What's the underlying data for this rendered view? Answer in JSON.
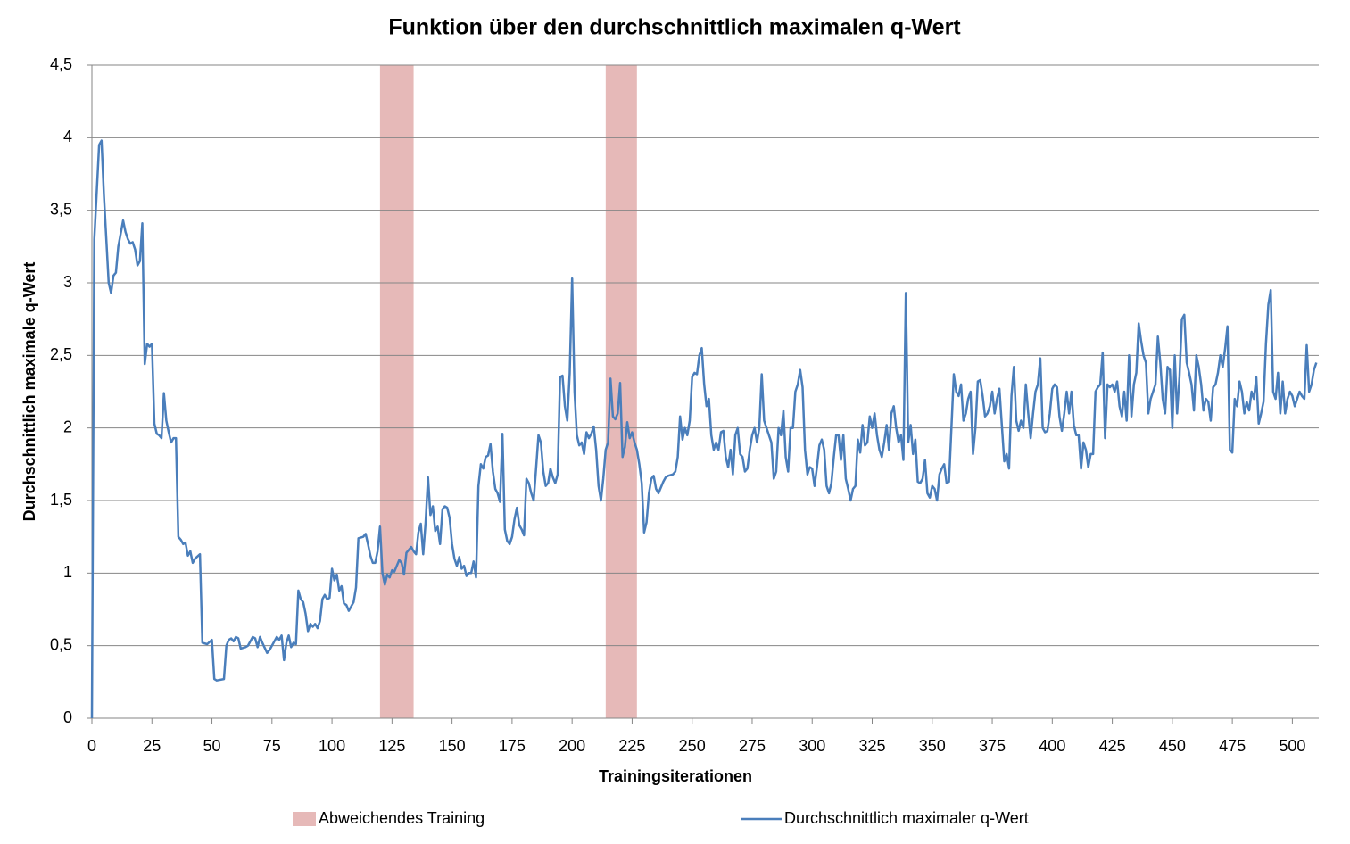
{
  "chart_data": {
    "type": "line",
    "title": "Funktion über den durchschnittlich maximalen q-Wert",
    "x_label": "Trainingsiterationen",
    "y_label": "Durchschnittlich maximale q-Wert",
    "xlim": [
      0,
      511
    ],
    "xticks": [
      0,
      25,
      50,
      75,
      100,
      125,
      150,
      175,
      200,
      225,
      250,
      275,
      300,
      325,
      350,
      375,
      400,
      425,
      450,
      475,
      500
    ],
    "ylim": [
      0,
      4.5
    ],
    "yticks": [
      0,
      {
        "value": 0.5,
        "label": "0,5"
      },
      1,
      {
        "value": 1.5,
        "label": "1,5"
      },
      2,
      {
        "value": 2.5,
        "label": "2,5"
      },
      3,
      {
        "value": 3.5,
        "label": "3,5"
      },
      4,
      {
        "value": 4.5,
        "label": "4,5"
      }
    ],
    "grid": true,
    "legend": "bottom",
    "bands": {
      "name": "Abweichendes Training",
      "color": "#e6b9b8",
      "ranges": [
        [
          120,
          134
        ],
        [
          214,
          227
        ]
      ]
    },
    "x": [
      0,
      1,
      3,
      4,
      5,
      7,
      8,
      9,
      10,
      11,
      13,
      14,
      15,
      16,
      17,
      18,
      19,
      20,
      21,
      22,
      23,
      24,
      25,
      26,
      27,
      28,
      29,
      30,
      31,
      32,
      33,
      34,
      35,
      36,
      37,
      38,
      39,
      40,
      41,
      42,
      43,
      45,
      46,
      48,
      50,
      51,
      52,
      55,
      56,
      57,
      58,
      59,
      60,
      61,
      62,
      64,
      65,
      67,
      68,
      69,
      70,
      71,
      73,
      74,
      76,
      77,
      78,
      79,
      80,
      81,
      82,
      83,
      84,
      85,
      86,
      87,
      88,
      89,
      90,
      91,
      92,
      93,
      94,
      95,
      96,
      97,
      98,
      99,
      100,
      101,
      102,
      103,
      104,
      105,
      106,
      107,
      108,
      109,
      110,
      111,
      113,
      114,
      115,
      116,
      117,
      118,
      119,
      120,
      121,
      122,
      123,
      124,
      125,
      126,
      127,
      128,
      129,
      130,
      131,
      133,
      134,
      135,
      136,
      137,
      138,
      139,
      140,
      141,
      142,
      143,
      144,
      145,
      146,
      147,
      148,
      149,
      150,
      151,
      152,
      153,
      154,
      155,
      156,
      157,
      158,
      159,
      160,
      161,
      162,
      163,
      164,
      165,
      166,
      167,
      168,
      169,
      170,
      171,
      172,
      173,
      174,
      175,
      176,
      177,
      178,
      179,
      180,
      181,
      182,
      183,
      184,
      185,
      186,
      187,
      188,
      189,
      190,
      191,
      192,
      193,
      194,
      195,
      196,
      197,
      198,
      199,
      200,
      201,
      202,
      203,
      204,
      205,
      206,
      207,
      208,
      209,
      210,
      211,
      212,
      213,
      214,
      215,
      216,
      217,
      218,
      219,
      220,
      221,
      222,
      223,
      224,
      225,
      226,
      227,
      228,
      229,
      230,
      231,
      232,
      233,
      234,
      235,
      236,
      238,
      239,
      240,
      242,
      243,
      244,
      245,
      246,
      247,
      248,
      249,
      250,
      251,
      252,
      253,
      254,
      255,
      256,
      257,
      258,
      259,
      260,
      261,
      262,
      263,
      264,
      265,
      266,
      267,
      268,
      269,
      270,
      271,
      272,
      273,
      274,
      275,
      276,
      277,
      278,
      279,
      280,
      281,
      282,
      283,
      284,
      285,
      286,
      287,
      288,
      289,
      290,
      291,
      292,
      293,
      294,
      295,
      296,
      297,
      298,
      299,
      300,
      301,
      302,
      303,
      304,
      305,
      306,
      307,
      308,
      309,
      310,
      311,
      312,
      313,
      314,
      315,
      316,
      317,
      318,
      319,
      320,
      321,
      322,
      323,
      324,
      325,
      326,
      327,
      328,
      329,
      330,
      331,
      332,
      333,
      334,
      335,
      336,
      337,
      338,
      339,
      340,
      341,
      342,
      343,
      344,
      345,
      346,
      347,
      348,
      349,
      350,
      351,
      352,
      353,
      354,
      355,
      356,
      357,
      358,
      359,
      360,
      361,
      362,
      363,
      364,
      365,
      366,
      367,
      368,
      369,
      370,
      371,
      372,
      373,
      374,
      375,
      376,
      377,
      378,
      379,
      380,
      381,
      382,
      383,
      384,
      385,
      386,
      387,
      388,
      389,
      390,
      391,
      392,
      393,
      394,
      395,
      396,
      397,
      398,
      399,
      400,
      401,
      402,
      403,
      404,
      405,
      406,
      407,
      408,
      409,
      410,
      411,
      412,
      413,
      414,
      415,
      416,
      417,
      418,
      419,
      420,
      421,
      422,
      423,
      424,
      425,
      426,
      427,
      428,
      429,
      430,
      431,
      432,
      433,
      434,
      435,
      436,
      437,
      438,
      439,
      440,
      441,
      442,
      443,
      444,
      445,
      446,
      447,
      448,
      449,
      450,
      451,
      452,
      453,
      454,
      455,
      456,
      457,
      458,
      459,
      460,
      461,
      462,
      463,
      464,
      465,
      466,
      467,
      468,
      469,
      470,
      471,
      472,
      473,
      474,
      475,
      476,
      477,
      478,
      479,
      480,
      481,
      482,
      483,
      484,
      485,
      486,
      487,
      488,
      489,
      490,
      491,
      492,
      493,
      494,
      495,
      496,
      497,
      498,
      499,
      500,
      501,
      502,
      503,
      504,
      505,
      506,
      507,
      508,
      509,
      510
    ],
    "series": [
      {
        "name": "Durchschnittlich maximaler q-Wert",
        "color": "#4a7ebb",
        "values": [
          0,
          3.3,
          3.95,
          3.98,
          3.6,
          3.0,
          2.93,
          3.05,
          3.07,
          3.25,
          3.43,
          3.35,
          3.3,
          3.27,
          3.28,
          3.23,
          3.12,
          3.15,
          3.41,
          2.44,
          2.58,
          2.56,
          2.58,
          2.03,
          1.96,
          1.95,
          1.93,
          2.24,
          2.05,
          1.97,
          1.9,
          1.93,
          1.93,
          1.25,
          1.23,
          1.2,
          1.21,
          1.12,
          1.15,
          1.07,
          1.1,
          1.13,
          0.52,
          0.51,
          0.54,
          0.27,
          0.26,
          0.27,
          0.5,
          0.54,
          0.55,
          0.53,
          0.56,
          0.55,
          0.48,
          0.49,
          0.5,
          0.56,
          0.55,
          0.49,
          0.56,
          0.52,
          0.45,
          0.47,
          0.53,
          0.56,
          0.54,
          0.57,
          0.4,
          0.52,
          0.57,
          0.49,
          0.52,
          0.51,
          0.88,
          0.82,
          0.8,
          0.72,
          0.6,
          0.65,
          0.63,
          0.65,
          0.62,
          0.67,
          0.82,
          0.85,
          0.82,
          0.83,
          1.03,
          0.95,
          0.99,
          0.88,
          0.91,
          0.79,
          0.78,
          0.74,
          0.77,
          0.8,
          0.9,
          1.24,
          1.25,
          1.27,
          1.2,
          1.12,
          1.07,
          1.07,
          1.15,
          1.32,
          1.0,
          0.92,
          0.99,
          0.97,
          1.02,
          1.01,
          1.05,
          1.09,
          1.07,
          0.99,
          1.14,
          1.18,
          1.15,
          1.13,
          1.28,
          1.34,
          1.13,
          1.35,
          1.66,
          1.4,
          1.46,
          1.29,
          1.32,
          1.2,
          1.44,
          1.46,
          1.45,
          1.38,
          1.2,
          1.1,
          1.05,
          1.11,
          1.03,
          1.05,
          0.98,
          1.0,
          1.0,
          1.08,
          0.97,
          1.6,
          1.75,
          1.72,
          1.8,
          1.81,
          1.89,
          1.7,
          1.58,
          1.55,
          1.49,
          1.96,
          1.3,
          1.22,
          1.2,
          1.25,
          1.37,
          1.45,
          1.33,
          1.3,
          1.26,
          1.65,
          1.62,
          1.55,
          1.5,
          1.72,
          1.95,
          1.9,
          1.7,
          1.6,
          1.62,
          1.72,
          1.66,
          1.62,
          1.68,
          2.35,
          2.36,
          2.15,
          2.05,
          2.38,
          3.03,
          2.25,
          1.95,
          1.88,
          1.9,
          1.82,
          1.97,
          1.93,
          1.96,
          2.01,
          1.85,
          1.6,
          1.5,
          1.65,
          1.85,
          1.9,
          2.34,
          2.08,
          2.06,
          2.1,
          2.31,
          1.8,
          1.87,
          2.04,
          1.93,
          1.97,
          1.9,
          1.85,
          1.75,
          1.62,
          1.28,
          1.35,
          1.55,
          1.65,
          1.67,
          1.58,
          1.55,
          1.63,
          1.66,
          1.67,
          1.68,
          1.7,
          1.8,
          2.08,
          1.92,
          2.0,
          1.95,
          2.05,
          2.35,
          2.38,
          2.37,
          2.5,
          2.55,
          2.3,
          2.15,
          2.2,
          1.95,
          1.85,
          1.9,
          1.85,
          1.97,
          1.98,
          1.8,
          1.73,
          1.85,
          1.68,
          1.95,
          2.0,
          1.82,
          1.8,
          1.7,
          1.72,
          1.85,
          1.95,
          2.0,
          1.9,
          2.0,
          2.37,
          2.05,
          2.0,
          1.95,
          1.9,
          1.65,
          1.7,
          2.0,
          1.95,
          2.12,
          1.8,
          1.7,
          2.0,
          2.0,
          2.25,
          2.3,
          2.4,
          2.28,
          1.85,
          1.68,
          1.73,
          1.72,
          1.6,
          1.73,
          1.88,
          1.92,
          1.85,
          1.6,
          1.55,
          1.62,
          1.8,
          1.95,
          1.95,
          1.78,
          1.95,
          1.65,
          1.58,
          1.5,
          1.58,
          1.6,
          1.92,
          1.83,
          2.02,
          1.88,
          1.9,
          2.08,
          2.0,
          2.1,
          1.95,
          1.85,
          1.8,
          1.9,
          2.02,
          1.85,
          2.1,
          2.15,
          2.0,
          1.9,
          1.95,
          1.78,
          2.93,
          1.9,
          2.02,
          1.82,
          1.92,
          1.63,
          1.62,
          1.65,
          1.78,
          1.55,
          1.52,
          1.6,
          1.58,
          1.5,
          1.68,
          1.72,
          1.75,
          1.62,
          1.63,
          2.0,
          2.37,
          2.25,
          2.22,
          2.3,
          2.05,
          2.1,
          2.2,
          2.25,
          1.82,
          2.0,
          2.32,
          2.33,
          2.22,
          2.08,
          2.1,
          2.15,
          2.25,
          2.1,
          2.2,
          2.27,
          2.02,
          1.77,
          1.82,
          1.72,
          2.22,
          2.42,
          2.05,
          1.98,
          2.05,
          2.0,
          2.3,
          2.1,
          1.93,
          2.1,
          2.25,
          2.3,
          2.48,
          2.0,
          1.97,
          1.98,
          2.1,
          2.27,
          2.3,
          2.28,
          2.08,
          1.98,
          2.1,
          2.25,
          2.1,
          2.25,
          2.02,
          1.95,
          1.95,
          1.72,
          1.9,
          1.85,
          1.73,
          1.82,
          1.82,
          2.25,
          2.28,
          2.3,
          2.52,
          1.93,
          2.3,
          2.28,
          2.3,
          2.25,
          2.32,
          2.15,
          2.08,
          2.25,
          2.05,
          2.5,
          2.08,
          2.3,
          2.38,
          2.72,
          2.6,
          2.5,
          2.45,
          2.1,
          2.2,
          2.25,
          2.3,
          2.63,
          2.45,
          2.2,
          2.1,
          2.42,
          2.4,
          2.0,
          2.5,
          2.1,
          2.35,
          2.75,
          2.78,
          2.45,
          2.38,
          2.3,
          2.12,
          2.5,
          2.42,
          2.3,
          2.12,
          2.2,
          2.18,
          2.05,
          2.28,
          2.3,
          2.38,
          2.5,
          2.42,
          2.55,
          2.7,
          1.85,
          1.83,
          2.2,
          2.15,
          2.32,
          2.25,
          2.1,
          2.18,
          2.12,
          2.25,
          2.2,
          2.35,
          2.03,
          2.1,
          2.18,
          2.58,
          2.85,
          2.95,
          2.25,
          2.2,
          2.38,
          2.1,
          2.32,
          2.1,
          2.2,
          2.25,
          2.22,
          2.15,
          2.2,
          2.25,
          2.22,
          2.2,
          2.57,
          2.25,
          2.3,
          2.4,
          2.45
        ]
      }
    ]
  }
}
